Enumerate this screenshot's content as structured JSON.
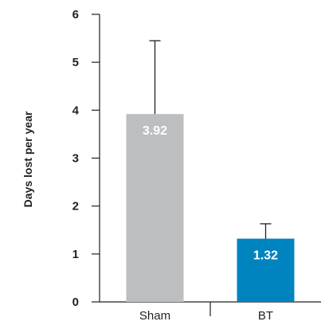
{
  "chart_data": {
    "type": "bar",
    "title": "",
    "xlabel": "",
    "ylabel": "Days lost per year",
    "categories": [
      "Sham",
      "BT"
    ],
    "values": [
      3.92,
      1.32
    ],
    "error_upper": [
      5.45,
      1.63
    ],
    "data_labels": [
      "3.92",
      "1.32"
    ],
    "colors": [
      "#bcbec0",
      "#0084c0"
    ],
    "ylim": [
      0,
      6
    ],
    "yticks": [
      "0",
      "1",
      "2",
      "3",
      "4",
      "5",
      "6"
    ],
    "grid": false,
    "legend": "none"
  }
}
